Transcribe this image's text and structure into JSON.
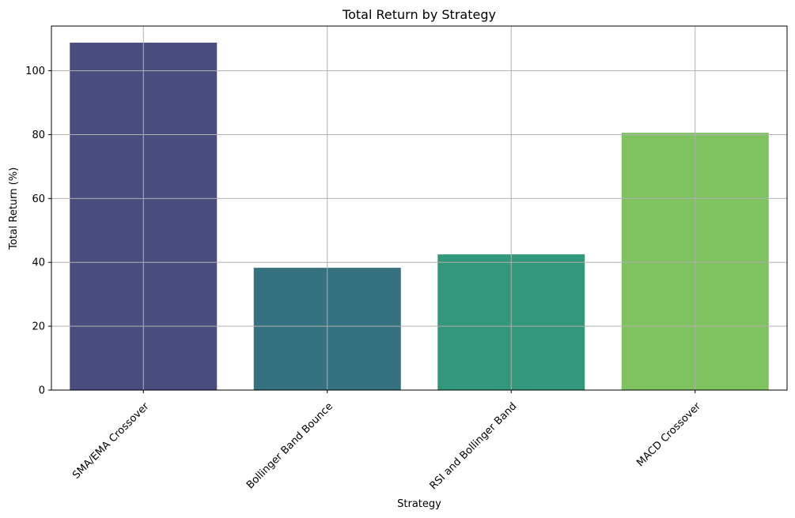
{
  "chart_data": {
    "type": "bar",
    "title": "Total Return by Strategy",
    "xlabel": "Strategy",
    "ylabel": "Total Return (%)",
    "categories": [
      "SMA/EMA Crossover",
      "Bollinger Band Bounce",
      "RSI and Bollinger Band",
      "MACD Crossover"
    ],
    "values": [
      108.8,
      38.3,
      42.5,
      80.6
    ],
    "colors": [
      "#4a4e7f",
      "#35717f",
      "#32977b",
      "#7fc260"
    ],
    "ylim": [
      0,
      114
    ],
    "yticks": [
      0,
      20,
      40,
      60,
      80,
      100
    ],
    "grid": true,
    "legend": "none",
    "xtick_rotation": 45
  }
}
